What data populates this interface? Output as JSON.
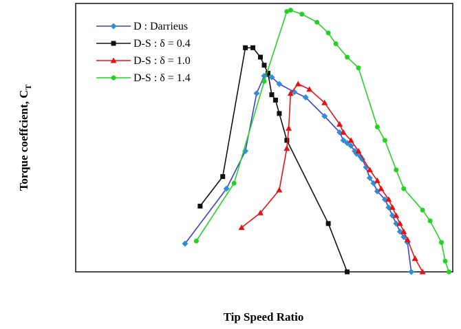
{
  "chart_data": {
    "type": "line",
    "title": "",
    "xlabel": "Tip Speed Ratio",
    "ylabel": {
      "main": "Torque coeffcient, C",
      "subscript": "T"
    },
    "xlim": [
      0,
      1
    ],
    "ylim": [
      0,
      1
    ],
    "ticks_visible": false,
    "grid": false,
    "legend_position": "top-left",
    "series": [
      {
        "name": "D : Darrieus",
        "color": "#3b3fd6",
        "marker_color": "#2e8fd8",
        "marker": "diamond",
        "x": [
          0.29,
          0.4,
          0.45,
          0.48,
          0.5,
          0.52,
          0.54,
          0.58,
          0.61,
          0.66,
          0.7,
          0.71,
          0.72,
          0.73,
          0.74,
          0.745,
          0.755,
          0.76,
          0.77,
          0.78,
          0.79,
          0.8,
          0.82,
          0.83,
          0.84,
          0.85,
          0.86,
          0.87,
          0.88,
          0.89
        ],
        "y": [
          0.105,
          0.31,
          0.45,
          0.665,
          0.73,
          0.725,
          0.7,
          0.67,
          0.65,
          0.58,
          0.52,
          0.49,
          0.48,
          0.47,
          0.45,
          0.44,
          0.43,
          0.42,
          0.39,
          0.35,
          0.33,
          0.3,
          0.27,
          0.24,
          0.21,
          0.18,
          0.15,
          0.13,
          0.11,
          0.0
        ]
      },
      {
        "name": "D-S : δ = 0.4",
        "color": "#111111",
        "marker_color": "#111111",
        "marker": "square",
        "x": [
          0.33,
          0.39,
          0.45,
          0.47,
          0.49,
          0.5,
          0.51,
          0.52,
          0.53,
          0.54,
          0.56,
          0.67,
          0.72
        ],
        "y": [
          0.245,
          0.355,
          0.835,
          0.835,
          0.8,
          0.77,
          0.74,
          0.66,
          0.64,
          0.59,
          0.49,
          0.18,
          0.0
        ]
      },
      {
        "name": "D-S : δ = 1.0",
        "color": "#e81010",
        "marker_color": "#e81010",
        "marker": "triangle",
        "x": [
          0.44,
          0.49,
          0.54,
          0.56,
          0.565,
          0.57,
          0.59,
          0.62,
          0.66,
          0.7,
          0.71,
          0.73,
          0.75,
          0.78,
          0.8,
          0.81,
          0.83,
          0.84,
          0.85,
          0.86,
          0.87,
          0.88,
          0.9,
          0.92
        ],
        "y": [
          0.165,
          0.22,
          0.305,
          0.46,
          0.535,
          0.665,
          0.7,
          0.68,
          0.63,
          0.55,
          0.52,
          0.49,
          0.45,
          0.38,
          0.34,
          0.31,
          0.27,
          0.24,
          0.21,
          0.18,
          0.15,
          0.12,
          0.05,
          0.0
        ]
      },
      {
        "name": "D-S : δ = 1.4",
        "color": "#22d322",
        "marker_color": "#22d322",
        "marker": "circle",
        "x": [
          0.32,
          0.42,
          0.5,
          0.56,
          0.57,
          0.6,
          0.64,
          0.67,
          0.69,
          0.72,
          0.75,
          0.8,
          0.82,
          0.85,
          0.87,
          0.92,
          0.94,
          0.97,
          0.98,
          0.99
        ],
        "y": [
          0.115,
          0.33,
          0.71,
          0.97,
          0.975,
          0.96,
          0.93,
          0.89,
          0.85,
          0.8,
          0.76,
          0.54,
          0.49,
          0.38,
          0.31,
          0.23,
          0.19,
          0.11,
          0.04,
          0.0
        ]
      }
    ]
  }
}
